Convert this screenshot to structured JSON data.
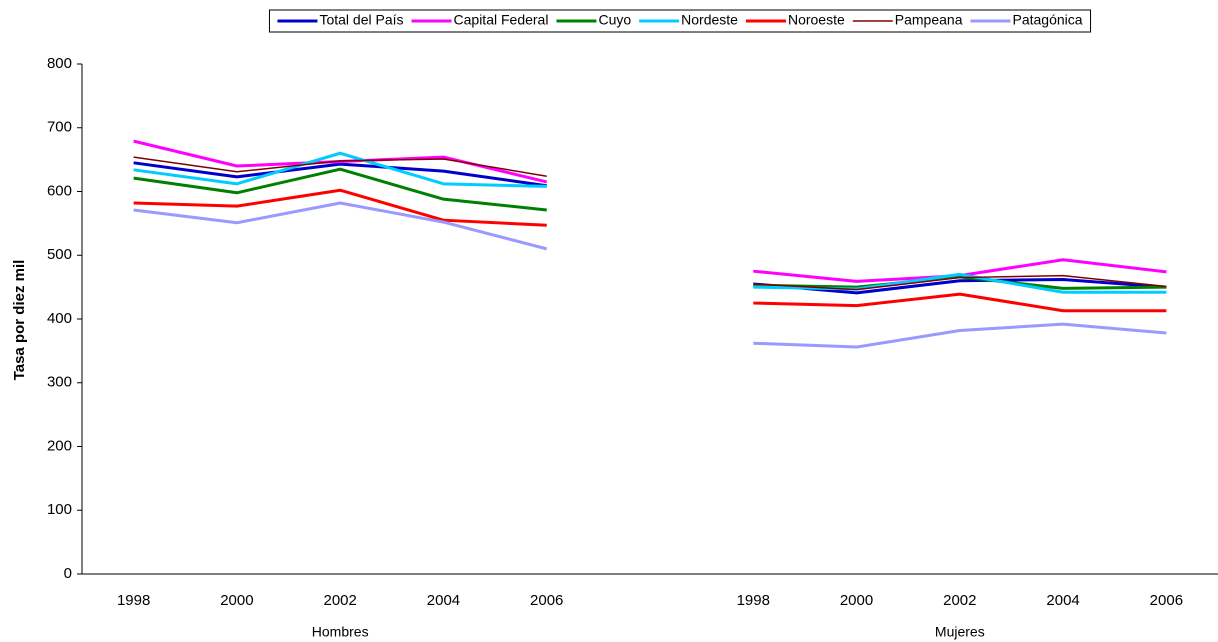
{
  "chart_data": {
    "type": "line",
    "y_label": "Tasa por diez mil",
    "categories": [
      "1998",
      "2000",
      "2002",
      "2004",
      "2006",
      null,
      "1998",
      "2000",
      "2002",
      "2004",
      "2006"
    ],
    "groups": [
      "Hombres",
      "Mujeres"
    ],
    "ylim": [
      0,
      800
    ],
    "yticks": [
      0,
      100,
      200,
      300,
      400,
      500,
      600,
      700,
      800
    ],
    "grid": false,
    "legend": "top",
    "series": [
      {
        "name": "Total del País",
        "color": "#0000cc",
        "width": 3,
        "values": [
          645,
          623,
          643,
          632,
          609,
          null,
          455,
          441,
          460,
          462,
          450
        ]
      },
      {
        "name": "Capital Federal",
        "color": "#ff00ff",
        "width": 3,
        "values": [
          679,
          640,
          647,
          654,
          615,
          null,
          475,
          459,
          468,
          493,
          474
        ]
      },
      {
        "name": "Cuyo",
        "color": "#008000",
        "width": 3,
        "values": [
          621,
          598,
          635,
          588,
          571,
          null,
          453,
          450,
          466,
          448,
          450
        ]
      },
      {
        "name": "Nordeste",
        "color": "#00ccff",
        "width": 3,
        "values": [
          634,
          612,
          660,
          612,
          608,
          null,
          450,
          447,
          470,
          442,
          442
        ]
      },
      {
        "name": "Noroeste",
        "color": "#ff0000",
        "width": 3,
        "values": [
          582,
          577,
          602,
          555,
          547,
          null,
          425,
          421,
          439,
          413,
          413
        ]
      },
      {
        "name": "Pampeana",
        "color": "#800000",
        "width": 1.5,
        "values": [
          654,
          631,
          648,
          651,
          624,
          null,
          455,
          446,
          465,
          468,
          451
        ]
      },
      {
        "name": "Patagónica",
        "color": "#9999ff",
        "width": 3,
        "values": [
          571,
          551,
          582,
          552,
          510,
          null,
          362,
          356,
          382,
          392,
          378
        ]
      }
    ]
  }
}
